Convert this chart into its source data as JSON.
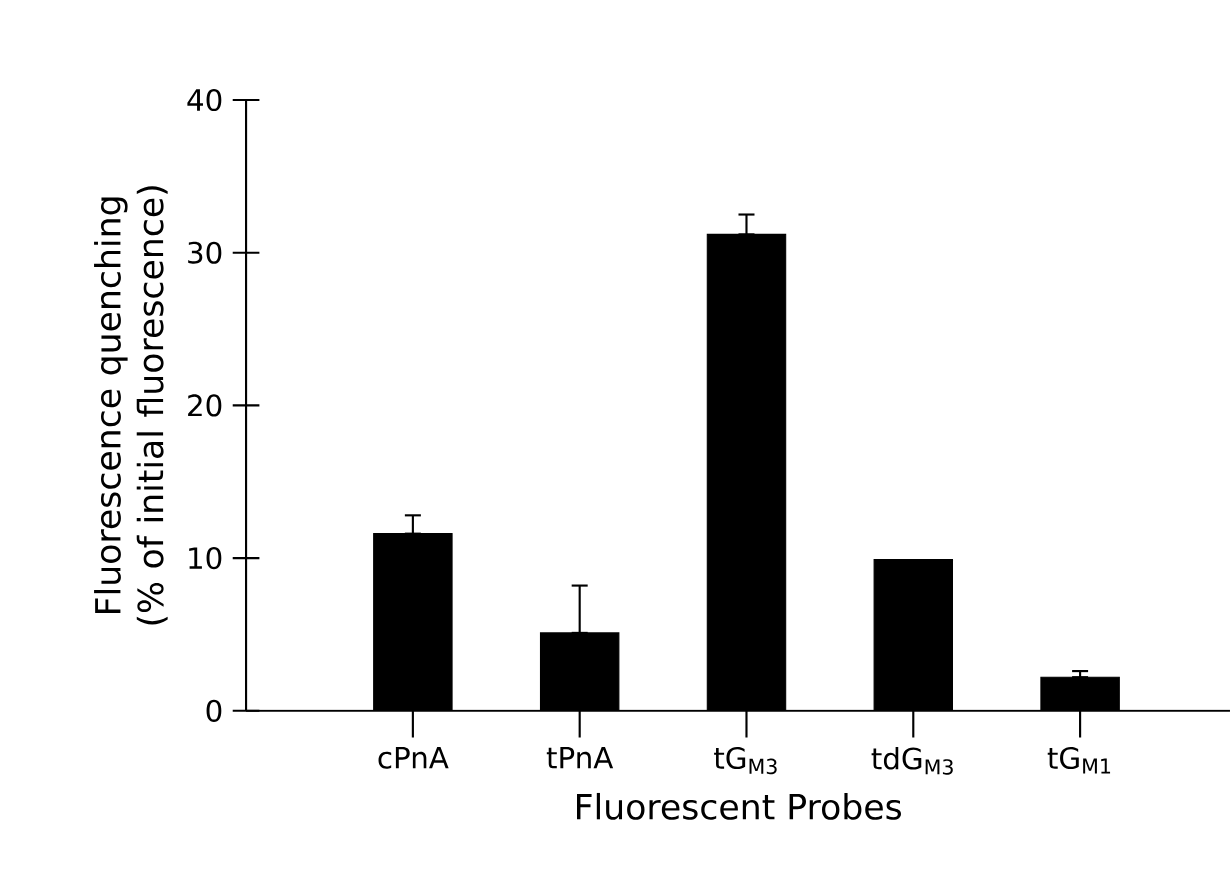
{
  "chart_data": {
    "type": "bar",
    "xlabel": "Fluorescent Probes",
    "ylabel": "Fluorescence quenching (% of initial fluorescence)",
    "categories": [
      "cPnA",
      "tPnA",
      "tG$_{M3}$",
      "tdG$_{M3}$",
      "tG$_{M1}$"
    ],
    "values": [
      11.6,
      5.1,
      31.2,
      9.9,
      2.2
    ],
    "errors": [
      [
        11.6,
        12.8
      ],
      [
        5.1,
        8.2
      ],
      [
        31.2,
        32.5
      ],
      null,
      [
        2.2,
        2.6
      ]
    ],
    "color": "#000000",
    "ylim": [
      0,
      40
    ],
    "yticks": [
      0,
      10,
      20,
      30,
      40
    ],
    "grid": false
  }
}
